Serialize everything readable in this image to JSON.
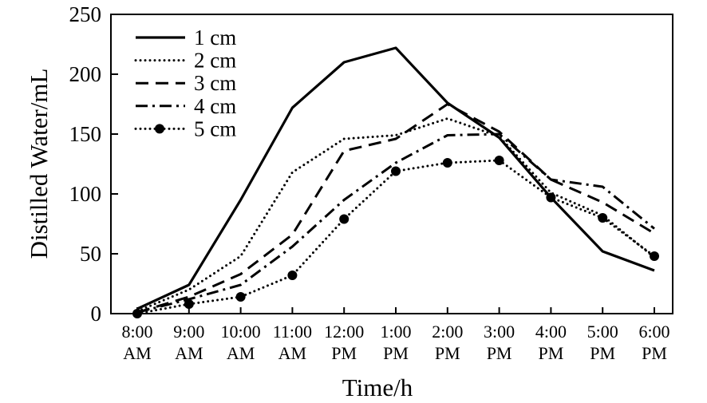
{
  "chart_data": {
    "type": "line",
    "title": "",
    "xlabel": "Time/h",
    "ylabel": "Distilled Water/mL",
    "ylim": [
      0,
      250
    ],
    "yticks": [
      0,
      50,
      100,
      150,
      200,
      250
    ],
    "grid": false,
    "legend_position": "top-left",
    "x": [
      [
        "8:00",
        "AM"
      ],
      [
        "9:00",
        "AM"
      ],
      [
        "10:00",
        "AM"
      ],
      [
        "11:00",
        "AM"
      ],
      [
        "12:00",
        "PM"
      ],
      [
        "1:00",
        "PM"
      ],
      [
        "2:00",
        "PM"
      ],
      [
        "3:00",
        "PM"
      ],
      [
        "4:00",
        "PM"
      ],
      [
        "5:00",
        "PM"
      ],
      [
        "6:00",
        "PM"
      ]
    ],
    "series": [
      {
        "name": "1 cm",
        "style": "solid",
        "values": [
          4,
          24,
          95,
          172,
          210,
          222,
          176,
          147,
          97,
          52,
          36
        ]
      },
      {
        "name": "2 cm",
        "style": "dotted",
        "values": [
          2,
          20,
          48,
          118,
          146,
          149,
          163,
          148,
          101,
          82,
          47
        ]
      },
      {
        "name": "3 cm",
        "style": "dashed",
        "values": [
          1,
          14,
          33,
          66,
          136,
          146,
          175,
          152,
          112,
          93,
          67
        ]
      },
      {
        "name": "4 cm",
        "style": "dash-dot",
        "values": [
          1,
          12,
          24,
          56,
          95,
          126,
          149,
          150,
          112,
          106,
          71
        ]
      },
      {
        "name": "5 cm",
        "style": "dotted-marker",
        "values": [
          0,
          8,
          14,
          32,
          79,
          119,
          126,
          128,
          97,
          80,
          48
        ]
      }
    ]
  }
}
